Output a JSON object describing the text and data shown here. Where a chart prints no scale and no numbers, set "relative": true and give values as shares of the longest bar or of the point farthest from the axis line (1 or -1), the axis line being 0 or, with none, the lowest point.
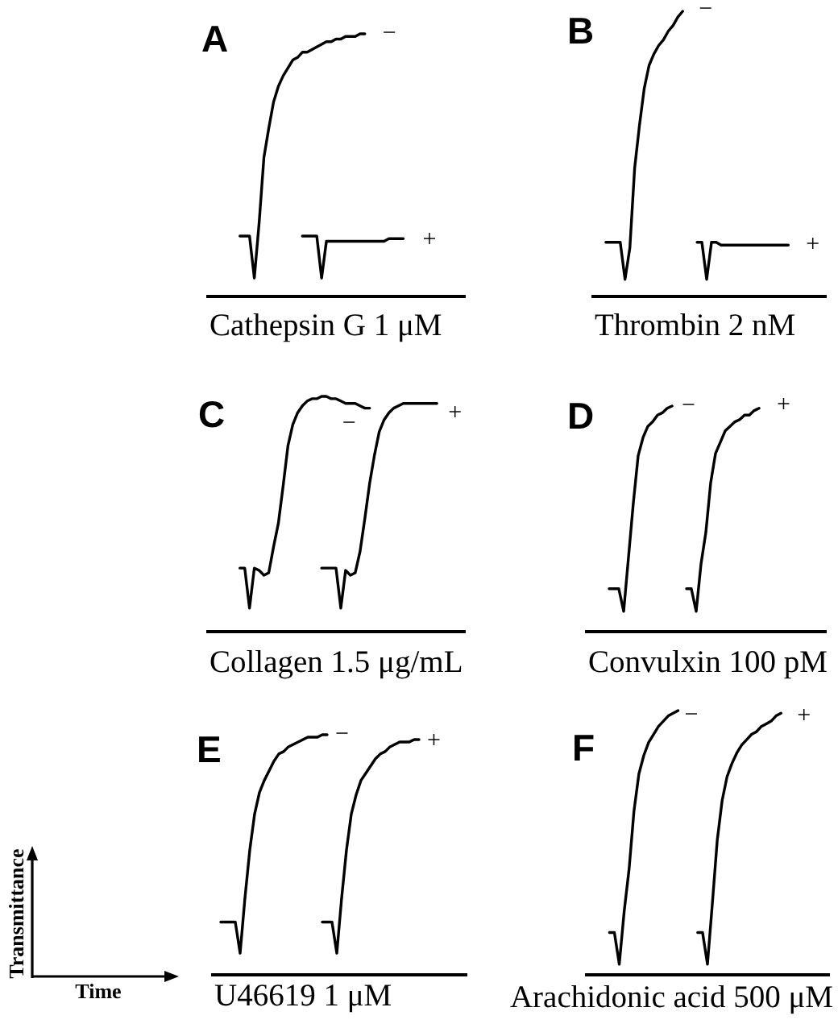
{
  "chart_data": [
    {
      "type": "line",
      "title": "A",
      "xlabel": "Cathepsin G 1 μM",
      "relative": true,
      "categories": [
        null,
        null,
        null,
        null,
        null,
        null,
        null,
        null,
        null,
        null,
        null,
        null,
        null,
        null,
        null,
        null,
        null,
        null,
        null,
        null,
        null,
        null,
        null,
        null,
        null,
        null,
        null,
        null,
        null,
        null,
        null,
        null,
        null,
        null,
        null,
        null,
        null,
        null,
        null,
        null,
        null,
        null,
        null,
        null,
        null,
        null,
        null,
        null,
        null,
        null,
        null,
        null,
        null,
        null,
        null
      ],
      "series": [
        {
          "name": "−",
          "color": "#000000",
          "values": [
            null,
            null,
            null,
            null,
            null,
            null,
            null,
            0.23,
            0.23,
            0.23,
            0.07,
            0.28,
            0.53,
            0.64,
            0.74,
            0.8,
            0.84,
            0.87,
            0.9,
            0.91,
            0.93,
            0.93,
            0.94,
            0.95,
            0.96,
            0.97,
            0.97,
            0.98,
            0.98,
            0.99,
            0.99,
            0.99,
            1,
            1,
            null,
            null,
            null,
            null,
            null,
            null,
            null,
            null,
            null,
            null,
            null,
            null,
            null,
            null,
            null,
            null,
            null,
            null,
            null,
            null,
            null
          ]
        },
        {
          "name": "+",
          "color": "#000000",
          "values": [
            null,
            null,
            null,
            null,
            null,
            null,
            null,
            null,
            null,
            null,
            null,
            null,
            null,
            null,
            null,
            null,
            null,
            null,
            null,
            null,
            0.23,
            0.23,
            0.23,
            0.23,
            0.07,
            0.21,
            0.21,
            0.21,
            0.21,
            0.21,
            0.21,
            0.21,
            0.21,
            0.21,
            0.21,
            0.21,
            0.21,
            0.21,
            0.22,
            0.22,
            0.22,
            0.22,
            null,
            null,
            null,
            null,
            null,
            null,
            null,
            null,
            null,
            null,
            null,
            null,
            null
          ]
        }
      ]
    },
    {
      "type": "line",
      "title": "B",
      "xlabel": "Thrombin 2 nM",
      "relative": true,
      "categories": [
        null,
        null,
        null,
        null,
        null,
        null,
        null,
        null,
        null,
        null,
        null,
        null,
        null,
        null,
        null,
        null,
        null,
        null,
        null,
        null,
        null,
        null,
        null,
        null,
        null,
        null,
        null,
        null,
        null,
        null,
        null,
        null,
        null,
        null,
        null,
        null,
        null,
        null,
        null,
        null,
        null,
        null,
        null,
        null,
        null,
        null,
        null,
        null,
        null,
        null
      ],
      "series": [
        {
          "name": "−",
          "color": "#000000",
          "values": [
            null,
            null,
            null,
            0.19,
            0.19,
            0.19,
            0.19,
            0.06,
            0.17,
            0.45,
            0.6,
            0.73,
            0.81,
            0.85,
            0.88,
            0.9,
            0.93,
            0.95,
            0.98,
            1,
            null,
            null,
            null,
            null,
            null,
            null,
            null,
            null,
            null,
            null,
            null,
            null,
            null,
            null,
            null,
            null,
            null,
            null,
            null,
            null,
            null,
            null,
            null,
            null,
            null,
            null,
            null,
            null,
            null,
            null
          ]
        },
        {
          "name": "+",
          "color": "#000000",
          "values": [
            null,
            null,
            null,
            null,
            null,
            null,
            null,
            null,
            null,
            null,
            null,
            null,
            null,
            null,
            null,
            null,
            null,
            null,
            null,
            null,
            null,
            null,
            0.19,
            0.19,
            0.06,
            0.19,
            0.19,
            0.18,
            0.18,
            0.18,
            0.18,
            0.18,
            0.18,
            0.18,
            0.18,
            0.18,
            0.18,
            0.18,
            0.18,
            0.18,
            0.18,
            0.18,
            null,
            null,
            null,
            null,
            null,
            null,
            null,
            null
          ]
        }
      ]
    },
    {
      "type": "line",
      "title": "C",
      "xlabel": "Collagen 1.5 μg/mL",
      "relative": true,
      "categories": [
        null,
        null,
        null,
        null,
        null,
        null,
        null,
        null,
        null,
        null,
        null,
        null,
        null,
        null,
        null,
        null,
        null,
        null,
        null,
        null,
        null,
        null,
        null,
        null,
        null,
        null,
        null,
        null,
        null,
        null,
        null,
        null,
        null,
        null,
        null,
        null,
        null,
        null,
        null,
        null,
        null,
        null,
        null,
        null,
        null,
        null,
        null,
        null,
        null,
        null,
        null,
        null,
        null,
        null,
        null
      ],
      "series": [
        {
          "name": "−",
          "color": "#000000",
          "values": [
            null,
            null,
            null,
            null,
            null,
            null,
            null,
            0.27,
            0.27,
            0.1,
            0.27,
            0.26,
            0.24,
            0.25,
            0.36,
            0.46,
            0.62,
            0.79,
            0.88,
            0.93,
            0.96,
            0.98,
            0.99,
            0.99,
            1,
            1,
            0.99,
            0.99,
            0.98,
            0.97,
            0.97,
            0.97,
            0.96,
            0.95,
            0.95,
            null,
            null,
            null,
            null,
            null,
            null,
            null,
            null,
            null,
            null,
            null,
            null,
            null,
            null,
            null,
            null,
            null,
            null,
            null,
            null
          ]
        },
        {
          "name": "+",
          "color": "#000000",
          "values": [
            null,
            null,
            null,
            null,
            null,
            null,
            null,
            null,
            null,
            null,
            null,
            null,
            null,
            null,
            null,
            null,
            null,
            null,
            null,
            null,
            null,
            null,
            null,
            null,
            0.27,
            0.27,
            0.27,
            0.27,
            0.1,
            0.26,
            0.24,
            0.25,
            0.34,
            0.48,
            0.63,
            0.75,
            0.85,
            0.9,
            0.93,
            0.95,
            0.96,
            0.97,
            0.97,
            0.97,
            0.97,
            0.97,
            0.97,
            0.97,
            0.97,
            null,
            null,
            null,
            null,
            null,
            null
          ]
        }
      ]
    },
    {
      "type": "line",
      "title": "D",
      "xlabel": "Convulxin 100 pM",
      "relative": true,
      "categories": [
        null,
        null,
        null,
        null,
        null,
        null,
        null,
        null,
        null,
        null,
        null,
        null,
        null,
        null,
        null,
        null,
        null,
        null,
        null,
        null,
        null,
        null,
        null,
        null,
        null,
        null,
        null,
        null,
        null,
        null,
        null,
        null,
        null,
        null,
        null,
        null,
        null,
        null,
        null,
        null,
        null,
        null,
        null,
        null,
        null,
        null,
        null,
        null,
        null,
        null,
        null
      ],
      "series": [
        {
          "name": "−",
          "color": "#000000",
          "values": [
            null,
            null,
            null,
            null,
            null,
            0.19,
            0.19,
            0.19,
            0.09,
            0.33,
            0.57,
            0.78,
            0.86,
            0.91,
            0.93,
            0.96,
            0.97,
            0.99,
            1,
            null,
            null,
            null,
            null,
            null,
            null,
            null,
            null,
            null,
            null,
            null,
            null,
            null,
            null,
            null,
            null,
            null,
            null,
            null,
            null,
            null,
            null,
            null,
            null,
            null,
            null,
            null,
            null,
            null,
            null,
            null,
            null
          ]
        },
        {
          "name": "+",
          "color": "#000000",
          "values": [
            null,
            null,
            null,
            null,
            null,
            null,
            null,
            null,
            null,
            null,
            null,
            null,
            null,
            null,
            null,
            null,
            null,
            null,
            null,
            null,
            null,
            0.19,
            0.19,
            0.09,
            0.3,
            0.44,
            0.66,
            0.79,
            0.84,
            0.89,
            0.91,
            0.93,
            0.94,
            0.96,
            0.96,
            0.98,
            0.99,
            null,
            null,
            null,
            null,
            null,
            null,
            null,
            null,
            null,
            null,
            null,
            null,
            null,
            null
          ]
        }
      ]
    },
    {
      "type": "line",
      "title": "E",
      "xlabel": "U46619 1 μM",
      "relative": true,
      "categories": [
        null,
        null,
        null,
        null,
        null,
        null,
        null,
        null,
        null,
        null,
        null,
        null,
        null,
        null,
        null,
        null,
        null,
        null,
        null,
        null,
        null,
        null,
        null,
        null,
        null,
        null,
        null,
        null,
        null,
        null,
        null,
        null,
        null,
        null,
        null,
        null,
        null,
        null,
        null,
        null,
        null,
        null,
        null,
        null,
        null,
        null,
        null,
        null,
        null,
        null,
        null,
        null,
        null,
        null
      ],
      "series": [
        {
          "name": "−",
          "color": "#000000",
          "values": [
            null,
            null,
            0.22,
            0.22,
            0.22,
            0.22,
            0.09,
            0.32,
            0.52,
            0.67,
            0.76,
            0.81,
            0.85,
            0.89,
            0.92,
            0.93,
            0.95,
            0.96,
            0.97,
            0.98,
            0.99,
            0.99,
            0.99,
            1,
            1,
            null,
            null,
            null,
            null,
            null,
            null,
            null,
            null,
            null,
            null,
            null,
            null,
            null,
            null,
            null,
            null,
            null,
            null,
            null,
            null,
            null,
            null,
            null,
            null,
            null,
            null,
            null,
            null,
            null
          ]
        },
        {
          "name": "+",
          "color": "#000000",
          "values": [
            null,
            null,
            null,
            null,
            null,
            null,
            null,
            null,
            null,
            null,
            null,
            null,
            null,
            null,
            null,
            null,
            null,
            null,
            null,
            null,
            null,
            null,
            null,
            0.22,
            0.22,
            0.22,
            0.09,
            0.32,
            0.52,
            0.67,
            0.75,
            0.81,
            0.84,
            0.87,
            0.9,
            0.92,
            0.93,
            0.95,
            0.96,
            0.97,
            0.97,
            0.97,
            0.98,
            0.98,
            null,
            null,
            null,
            null,
            null,
            null,
            null,
            null,
            null,
            null
          ]
        }
      ]
    },
    {
      "type": "line",
      "title": "F",
      "xlabel": "Arachidonic acid 500 μM",
      "relative": true,
      "categories": [
        null,
        null,
        null,
        null,
        null,
        null,
        null,
        null,
        null,
        null,
        null,
        null,
        null,
        null,
        null,
        null,
        null,
        null,
        null,
        null,
        null,
        null,
        null,
        null,
        null,
        null,
        null,
        null,
        null,
        null,
        null,
        null,
        null,
        null,
        null,
        null,
        null,
        null,
        null,
        null,
        null,
        null,
        null,
        null,
        null,
        null,
        null,
        null,
        null,
        null,
        null
      ],
      "series": [
        {
          "name": "−",
          "color": "#000000",
          "values": [
            null,
            null,
            null,
            null,
            null,
            0.16,
            0.16,
            0.04,
            0.24,
            0.4,
            0.62,
            0.76,
            0.83,
            0.88,
            0.91,
            0.94,
            0.96,
            0.98,
            0.99,
            1,
            null,
            null,
            null,
            null,
            null,
            null,
            null,
            null,
            null,
            null,
            null,
            null,
            null,
            null,
            null,
            null,
            null,
            null,
            null,
            null,
            null,
            null,
            null,
            null,
            null,
            null,
            null,
            null,
            null,
            null,
            null
          ]
        },
        {
          "name": "+",
          "color": "#000000",
          "values": [
            null,
            null,
            null,
            null,
            null,
            null,
            null,
            null,
            null,
            null,
            null,
            null,
            null,
            null,
            null,
            null,
            null,
            null,
            null,
            null,
            null,
            null,
            null,
            0.16,
            0.16,
            0.04,
            0.27,
            0.51,
            0.66,
            0.75,
            0.8,
            0.84,
            0.87,
            0.89,
            0.91,
            0.92,
            0.94,
            0.95,
            0.96,
            0.98,
            0.99,
            null,
            null,
            null,
            null,
            null,
            null,
            null,
            null,
            null,
            null
          ]
        }
      ]
    },
    {
      "type": "other",
      "xlabel": "Time",
      "ylabel": "Transmittance"
    }
  ]
}
